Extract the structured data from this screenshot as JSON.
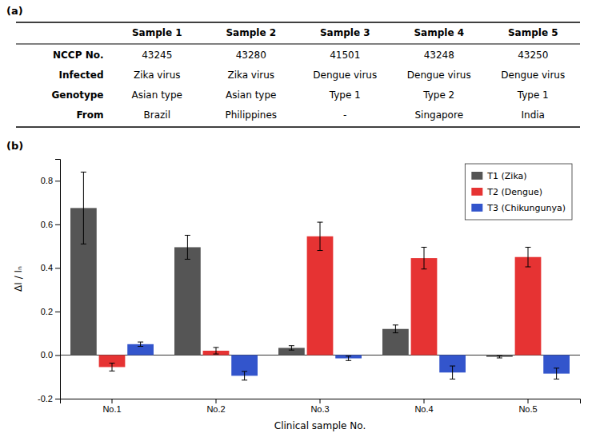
{
  "chart_data": [
    {
      "type": "table",
      "title": "(a)",
      "columns": [
        "Sample 1",
        "Sample 2",
        "Sample 3",
        "Sample 4",
        "Sample 5"
      ],
      "rows": [
        {
          "name": "NCCP No.",
          "cells": [
            "43245",
            "43280",
            "41501",
            "43248",
            "43250"
          ]
        },
        {
          "name": "Infected",
          "cells": [
            "Zika virus",
            "Zika virus",
            "Dengue virus",
            "Dengue virus",
            "Dengue virus"
          ]
        },
        {
          "name": "Genotype",
          "cells": [
            "Asian type",
            "Asian type",
            "Type 1",
            "Type 2",
            "Type 1"
          ]
        },
        {
          "name": "From",
          "cells": [
            "Brazil",
            "Philippines",
            "-",
            "Singapore",
            "India"
          ]
        }
      ]
    },
    {
      "type": "bar",
      "title": "(b)",
      "categories": [
        "No.1",
        "No.2",
        "No.3",
        "No.4",
        "No.5"
      ],
      "series": [
        {
          "name": "T1 (Zika)",
          "color": "#555555",
          "values": [
            0.675,
            0.495,
            0.033,
            0.12,
            -0.008
          ],
          "errors": [
            0.165,
            0.055,
            0.01,
            0.018,
            0.005
          ]
        },
        {
          "name": "T2 (Dengue)",
          "color": "#e63333",
          "values": [
            -0.055,
            0.02,
            0.545,
            0.445,
            0.45
          ],
          "errors": [
            0.018,
            0.015,
            0.065,
            0.05,
            0.045
          ]
        },
        {
          "name": "T3 (Chikungunya)",
          "color": "#3355cc",
          "values": [
            0.05,
            -0.095,
            -0.015,
            -0.08,
            -0.085
          ],
          "errors": [
            0.01,
            0.02,
            0.01,
            0.03,
            0.025
          ]
        }
      ],
      "xlabel": "Clinical sample No.",
      "ylabel": "ΔI / Iₙ",
      "ylim": [
        -0.2,
        0.9
      ],
      "yticks": [
        -0.2,
        {
          "value": 0.0,
          "label": "0.0"
        },
        0.2,
        0.4,
        0.6,
        0.8
      ],
      "legend": "upper right",
      "grid": false
    }
  ]
}
